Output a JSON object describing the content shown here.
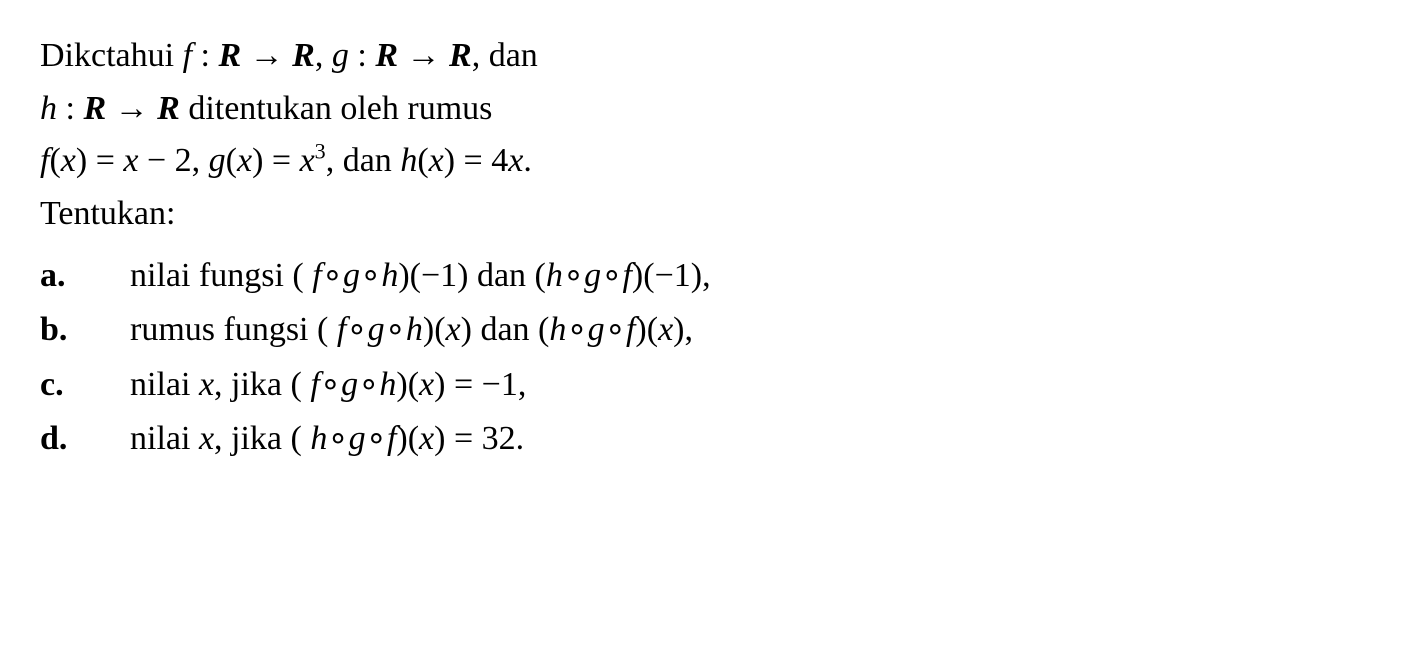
{
  "intro": {
    "l1_pre": "Dikctahui ",
    "l1_f": "f",
    "l1_colon1": " : ",
    "l1_R1": "R",
    "l1_arrow1": " → ",
    "l1_R2": "R",
    "l1_comma1": ", ",
    "l1_g": "g",
    "l1_colon2": " : ",
    "l1_R3": "R",
    "l1_arrow2": " → ",
    "l1_R4": "R",
    "l1_tail": ", dan",
    "l2_h": "h",
    "l2_colon": " : ",
    "l2_R1": "R",
    "l2_arrow": " → ",
    "l2_R2": "R",
    "l2_tail": " ditentukan oleh rumus",
    "l3_f": "f",
    "l3_px": "(",
    "l3_x1": "x",
    "l3_cx": ") = ",
    "l3_x2": "x",
    "l3_m2": " − 2, ",
    "l3_g": "g",
    "l3_px2": "(",
    "l3_x3": "x",
    "l3_cx2": ") = ",
    "l3_x4": "x",
    "l3_exp": "3",
    "l3_dan": ", dan ",
    "l3_h": "h",
    "l3_px3": "(",
    "l3_x5": "x",
    "l3_cx3": ") = 4",
    "l3_x6": "x",
    "l3_dot": ".",
    "l4": "Tentukan:"
  },
  "items": {
    "a": {
      "marker": "a.",
      "t1": "nilai fungsi (",
      "f1": "f",
      "o1": "∘",
      "g1": "g",
      "o2": "∘",
      "h1": "h",
      "t2": ")(−1) dan (",
      "h2": "h",
      "o3": "∘",
      "g2": "g",
      "o4": "∘",
      "f2": "f",
      "t3": ")(−1),"
    },
    "b": {
      "marker": "b.",
      "t1": "rumus fungsi (",
      "f1": "f",
      "o1": "∘",
      "g1": "g",
      "o2": "∘",
      "h1": "h",
      "t2": ")(",
      "x1": "x",
      "t3": ") dan (",
      "h2": "h",
      "o3": "∘",
      "g2": "g",
      "o4": "∘",
      "f2": "f",
      "t4": ")(",
      "x2": "x",
      "t5": "),"
    },
    "c": {
      "marker": "c.",
      "t1": "nilai ",
      "x1": "x",
      "t2": ", jika (",
      "f1": "f",
      "o1": "∘",
      "g1": "g",
      "o2": "∘",
      "h1": "h",
      "t3": ")(",
      "x2": "x",
      "t4": ") = −1,"
    },
    "d": {
      "marker": "d.",
      "t1": "nilai ",
      "x1": "x",
      "t2": ", jika (",
      "h1": "h",
      "o1": "∘",
      "g1": "g",
      "o2": "∘",
      "f1": "f",
      "t3": ")(",
      "x2": "x",
      "t4": ") = 32."
    }
  }
}
